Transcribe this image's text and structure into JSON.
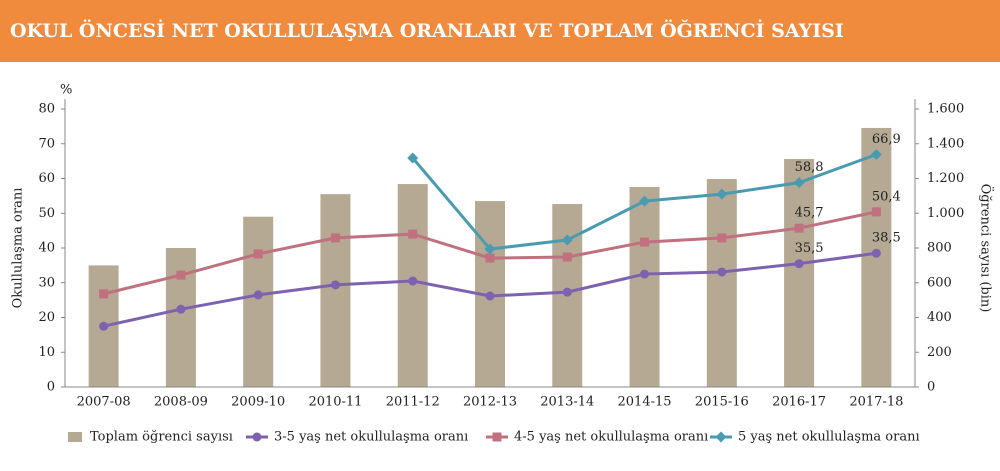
{
  "chart_data": {
    "type": "bar_line",
    "title": "OKUL ÖNCESİ NET OKULLULAŞMA ORANLARI VE TOPLAM ÖĞRENCİ SAYISI",
    "y_unit": "%",
    "ylabel": "Okullulaşma oranı",
    "y2label": "Öğrenci sayısı (bin)",
    "categories": [
      "2007-08",
      "2008-09",
      "2009-10",
      "2010-11",
      "2011-12",
      "2012-13",
      "2013-14",
      "2014-15",
      "2015-16",
      "2016-17",
      "2017-18"
    ],
    "ylim": [
      0,
      80
    ],
    "yticks": [
      0,
      10,
      20,
      30,
      40,
      50,
      60,
      70,
      80
    ],
    "y2lim": [
      0,
      1600
    ],
    "y2ticks": [
      0,
      200,
      400,
      600,
      800,
      {
        "value": 1000,
        "label": "1.000"
      },
      {
        "value": 1200,
        "label": "1.200"
      },
      {
        "value": 1400,
        "label": "1.400"
      },
      {
        "value": 1600,
        "label": "1.600"
      }
    ],
    "series": [
      {
        "name": "Toplam öğrenci sayısı",
        "kind": "bar",
        "axis": "y2",
        "color": "#b5a993",
        "values": [
          700,
          800,
          980,
          1110,
          1168,
          1070,
          1053,
          1151,
          1197,
          1312,
          1491
        ]
      },
      {
        "name": "3-5 yaş net okullulaşma oranı",
        "kind": "line",
        "marker": "circle",
        "color": "#7e62b0",
        "values": [
          17.5,
          22.4,
          26.5,
          29.4,
          30.5,
          26.2,
          27.3,
          32.5,
          33.1,
          35.5,
          38.5
        ],
        "value_labels": [
          null,
          null,
          null,
          null,
          null,
          null,
          null,
          null,
          null,
          "35,5",
          "38,5"
        ]
      },
      {
        "name": "4-5 yaş net okullulaşma oranı",
        "kind": "line",
        "marker": "square",
        "color": "#c0707e",
        "values": [
          26.8,
          32.2,
          38.3,
          42.9,
          44.0,
          37.1,
          37.4,
          41.7,
          42.9,
          45.7,
          50.4
        ],
        "value_labels": [
          null,
          null,
          null,
          null,
          null,
          null,
          null,
          null,
          null,
          "45,7",
          "50,4"
        ]
      },
      {
        "name": "5 yaş net okullulaşma oranı",
        "kind": "line",
        "marker": "diamond",
        "color": "#4a9bb0",
        "values": [
          null,
          null,
          null,
          null,
          65.9,
          39.7,
          42.3,
          53.5,
          55.5,
          58.8,
          66.9
        ],
        "value_labels": [
          null,
          null,
          null,
          null,
          null,
          null,
          null,
          null,
          null,
          "58,8",
          "66,9"
        ]
      }
    ]
  }
}
